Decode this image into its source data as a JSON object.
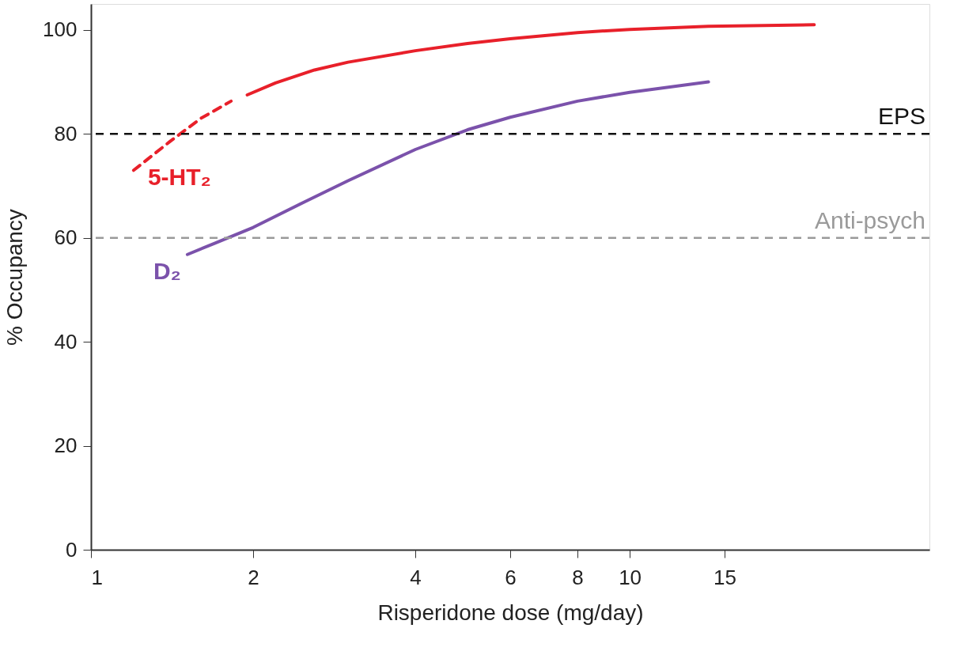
{
  "chart_data": {
    "type": "line",
    "xlabel": "Risperidone dose (mg/day)",
    "ylabel": "% Occupancy",
    "log": "x",
    "xlim": [
      1,
      36
    ],
    "xticks": [
      1,
      2,
      4,
      6,
      8,
      10,
      15
    ],
    "ylim": [
      0,
      105
    ],
    "yticks": [
      0,
      20,
      40,
      60,
      80,
      100
    ],
    "grid": false,
    "marker": "none",
    "line_style": "solid",
    "series": [
      {
        "name": "5-HT₂",
        "color": "#e8202a",
        "line_style": "dashed",
        "x": [
          1.2,
          1.4,
          1.6,
          1.82
        ],
        "values": [
          73,
          78.5,
          83,
          86.3
        ]
      },
      {
        "color": "#e8202a",
        "x": [
          1.95,
          2.2,
          2.6,
          3,
          4,
          5,
          6,
          8,
          10,
          14,
          22
        ],
        "values": [
          87.5,
          89.8,
          92.3,
          93.8,
          96,
          97.4,
          98.3,
          99.5,
          100.1,
          100.7,
          101
        ]
      },
      {
        "name": "D₂",
        "color": "#7b52ab",
        "x": [
          1.51,
          1.7,
          2,
          2.5,
          3,
          4,
          5,
          6,
          8,
          10,
          14
        ],
        "values": [
          56.8,
          59,
          62,
          67,
          71,
          77,
          80.8,
          83.2,
          86.3,
          88,
          90
        ]
      }
    ],
    "ref_lines": [
      {
        "axis": "y",
        "value": 80,
        "label": "EPS",
        "color": "#111111",
        "line_style": "dashed"
      },
      {
        "axis": "y",
        "value": 60,
        "label": "Anti-psych",
        "color": "#9a9a9a",
        "line_style": "dashed"
      }
    ]
  }
}
